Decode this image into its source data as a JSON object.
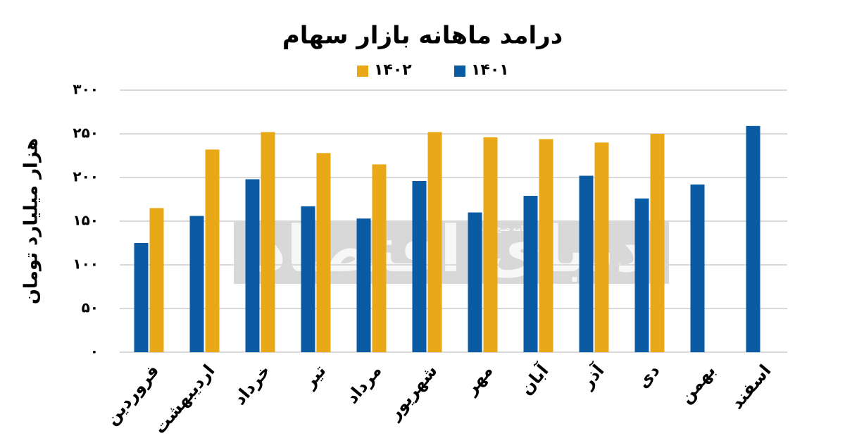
{
  "chart_data": {
    "type": "bar",
    "title": "درامد ماهانه بازار سهام",
    "y_label": "هزار میلیارد تومان",
    "categories": [
      "فروردین",
      "اردیبهشت",
      "خرداد",
      "تیر",
      "مرداد",
      "شهریور",
      "مهر",
      "آبان",
      "آذر",
      "دی",
      "بهمن",
      "اسفند"
    ],
    "series": [
      {
        "name": "۱۴۰۱",
        "color": "#0b5aa4",
        "values": [
          125,
          156,
          198,
          167,
          153,
          196,
          160,
          179,
          202,
          176,
          192,
          259
        ]
      },
      {
        "name": "۱۴۰۲",
        "color": "#e8a817",
        "values": [
          165,
          232,
          252,
          228,
          215,
          252,
          246,
          244,
          240,
          250,
          null,
          null
        ]
      }
    ],
    "ylim": [
      0,
      300
    ],
    "yticks": [
      {
        "value": 0,
        "label": "۰"
      },
      {
        "value": 50,
        "label": "۵۰"
      },
      {
        "value": 100,
        "label": "۱۰۰"
      },
      {
        "value": 150,
        "label": "۱۵۰"
      },
      {
        "value": 200,
        "label": "۲۰۰"
      },
      {
        "value": 250,
        "label": "۲۵۰"
      },
      {
        "value": 300,
        "label": "۳۰۰"
      }
    ],
    "grid": true,
    "watermark": "دنیای اقتصاد",
    "watermark_subtitle": "روزنامه صبح ایران"
  }
}
